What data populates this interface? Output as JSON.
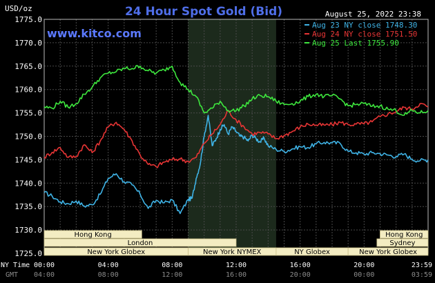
{
  "chart_data": {
    "type": "line",
    "title": "24 Hour Spot Gold (Bid)",
    "watermark": "www.kitco.com",
    "timestamp": "August 25, 2022 23:38",
    "ylabel": "USD/oz",
    "ylim": [
      1725,
      1775
    ],
    "yticks": [
      "1775.0",
      "1770.0",
      "1765.0",
      "1760.0",
      "1755.0",
      "1750.0",
      "1745.0",
      "1740.0",
      "1735.0",
      "1730.0",
      "1725.0"
    ],
    "xlim": [
      0,
      24
    ],
    "xticks_ny": [
      "00:00",
      "04:00",
      "08:00",
      "12:00",
      "16:00",
      "20:00",
      "23:59"
    ],
    "xticks_gmt": [
      "04:00",
      "08:00",
      "12:00",
      "16:00",
      "20:00",
      "00:00",
      "03:59"
    ],
    "row_label_ny": "NY Time",
    "row_label_gmt": "GMT",
    "grid": true,
    "legend_position": "top-right",
    "highlight_hours": [
      9,
      14.5
    ],
    "sessions": [
      {
        "label": "Hong Kong",
        "start": 0,
        "end": 6.1
      },
      {
        "label": "London",
        "start": 0,
        "end": 12.0
      },
      {
        "label": "New York Globex",
        "start": 0,
        "end": 9.0
      },
      {
        "label": "New York NYMEX",
        "start": 9.0,
        "end": 14.5
      },
      {
        "label": "NY Globex",
        "start": 14.5,
        "end": 19.0
      },
      {
        "label": "Hong Kong",
        "start": 21.0,
        "end": 24.0
      },
      {
        "label": "Sydney",
        "start": 20.8,
        "end": 24.0
      },
      {
        "label": "New York Globex",
        "start": 19.0,
        "end": 24.0
      }
    ],
    "series": [
      {
        "name": "Aug 23 NY close 1748.30",
        "color": "#3fb3e6",
        "x": [
          0,
          0.5,
          1,
          1.5,
          2,
          2.5,
          3,
          3.5,
          4,
          4.5,
          5,
          5.5,
          6,
          6.5,
          7,
          7.5,
          8,
          8.5,
          9,
          9.25,
          9.5,
          9.75,
          10,
          10.25,
          10.5,
          10.75,
          11,
          11.25,
          11.5,
          11.75,
          12,
          12.25,
          12.5,
          12.75,
          13,
          13.25,
          13.5,
          13.75,
          14,
          14.5,
          15,
          15.5,
          16,
          16.5,
          17,
          17.5,
          18,
          18.5,
          19,
          19.5,
          20,
          20.5,
          21,
          21.5,
          22,
          22.5,
          23,
          23.5,
          24
        ],
        "values": [
          1738.0,
          1737.2,
          1736.0,
          1735.6,
          1736.2,
          1735.1,
          1735.4,
          1737.6,
          1741.0,
          1742.0,
          1740.3,
          1739.6,
          1737.6,
          1734.6,
          1736.3,
          1735.8,
          1736.4,
          1733.5,
          1736.5,
          1736.8,
          1741.0,
          1744.0,
          1750.0,
          1754.5,
          1748.0,
          1749.5,
          1751.5,
          1752.5,
          1750.5,
          1752.0,
          1751.0,
          1750.0,
          1749.8,
          1749.0,
          1750.3,
          1749.5,
          1748.8,
          1749.6,
          1748.0,
          1747.2,
          1746.8,
          1747.3,
          1747.8,
          1747.6,
          1748.4,
          1748.7,
          1748.6,
          1748.5,
          1746.8,
          1746.5,
          1746.2,
          1746.5,
          1746.3,
          1746.0,
          1745.7,
          1746.2,
          1745.1,
          1744.8,
          1745.0
        ]
      },
      {
        "name": "Aug 24 NY close 1751.50",
        "color": "#e83535",
        "x": [
          0,
          0.5,
          1,
          1.5,
          2,
          2.5,
          3,
          3.5,
          4,
          4.5,
          5,
          5.5,
          6,
          6.5,
          7,
          7.5,
          8,
          8.5,
          9,
          9.5,
          10,
          10.5,
          11,
          11.5,
          12,
          12.5,
          13,
          13.5,
          14,
          14.5,
          15,
          15.5,
          16,
          16.5,
          17,
          17.5,
          18,
          18.5,
          19,
          19.5,
          20,
          20.5,
          21,
          21.5,
          22,
          22.5,
          23,
          23.5,
          24
        ],
        "values": [
          1745.5,
          1746.6,
          1747.6,
          1745.5,
          1745.7,
          1748.2,
          1746.5,
          1749.0,
          1752.0,
          1753.0,
          1751.5,
          1749.0,
          1746.0,
          1744.0,
          1743.5,
          1744.5,
          1745.0,
          1745.2,
          1744.6,
          1745.5,
          1748.5,
          1750.5,
          1752.5,
          1755.5,
          1753.5,
          1752.0,
          1750.5,
          1750.8,
          1750.5,
          1749.5,
          1750.2,
          1751.0,
          1752.0,
          1752.6,
          1752.4,
          1752.4,
          1752.5,
          1753.0,
          1752.5,
          1752.6,
          1752.7,
          1753.1,
          1754.2,
          1754.8,
          1755.3,
          1756.2,
          1755.8,
          1757.0,
          1756.3
        ]
      },
      {
        "name": "Aug 25 Last 1755.90",
        "color": "#3ee83e",
        "x": [
          0,
          0.5,
          1,
          1.5,
          2,
          2.5,
          3,
          3.5,
          4,
          4.5,
          5,
          5.5,
          6,
          6.5,
          7,
          7.5,
          8,
          8.5,
          9,
          9.5,
          10,
          10.5,
          11,
          11.5,
          12,
          12.5,
          13,
          13.5,
          14,
          14.5,
          15,
          15.5,
          16,
          16.5,
          17,
          17.5,
          18,
          18.5,
          19,
          19.5,
          20,
          20.5,
          21,
          21.5,
          22,
          22.5,
          23,
          23.5,
          24
        ],
        "values": [
          1756.3,
          1756.0,
          1757.5,
          1756.2,
          1757.0,
          1759.0,
          1760.5,
          1762.5,
          1763.5,
          1763.8,
          1764.5,
          1764.5,
          1765.0,
          1764.0,
          1763.5,
          1764.2,
          1765.0,
          1761.5,
          1760.0,
          1758.5,
          1755.0,
          1756.0,
          1757.5,
          1755.5,
          1755.5,
          1756.5,
          1758.0,
          1758.7,
          1758.5,
          1757.5,
          1756.8,
          1757.0,
          1757.5,
          1758.5,
          1759.0,
          1758.5,
          1758.7,
          1758.0,
          1756.5,
          1756.8,
          1757.0,
          1756.4,
          1756.5,
          1755.8,
          1755.5,
          1754.5,
          1755.5,
          1755.0,
          1755.5
        ]
      }
    ]
  }
}
